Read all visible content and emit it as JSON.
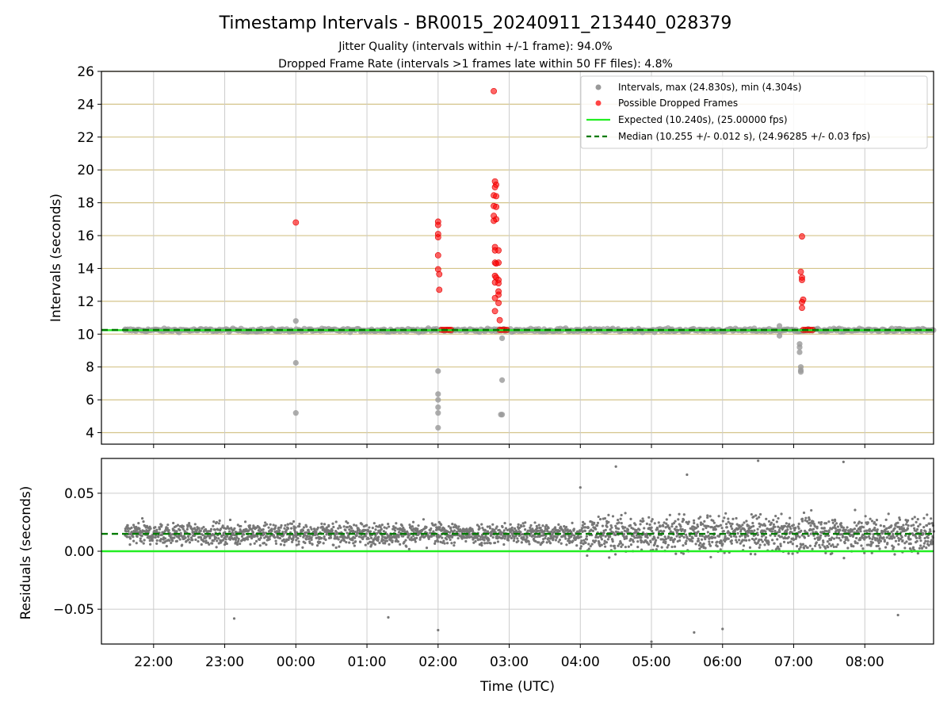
{
  "figure": {
    "title": "Timestamp Intervals - BR0015_20240911_213440_028379",
    "subtitle_1": "Jitter Quality (intervals within +/-1 frame): 94.0%",
    "subtitle_2": "Dropped Frame Rate (intervals >1 frames late within 50 FF files): 4.8%"
  },
  "chart_data": [
    {
      "type": "scatter",
      "panel": "intervals",
      "ylabel": "Intervals (seconds)",
      "ylim": [
        3.3,
        26
      ],
      "yticks": [
        4,
        6,
        8,
        10,
        12,
        14,
        16,
        18,
        20,
        22,
        24,
        26
      ],
      "xlim": [
        "21:16",
        "08:58"
      ],
      "xticks": [
        "22:00",
        "23:00",
        "00:00",
        "01:00",
        "02:00",
        "03:00",
        "04:00",
        "05:00",
        "06:00",
        "07:00",
        "08:00"
      ],
      "grid": true,
      "legend_position": "top-right",
      "series": [
        {
          "name": "Intervals, max (24.830s), min (4.304s)",
          "color": "#999999",
          "points": [
            [
              "21:36",
              10.24
            ],
            [
              "00:00",
              10.8
            ],
            [
              "00:00",
              8.25
            ],
            [
              "00:00",
              5.2
            ],
            [
              "02:00",
              7.75
            ],
            [
              "02:00",
              6.35
            ],
            [
              "02:00",
              6.0
            ],
            [
              "02:00",
              5.55
            ],
            [
              "02:00",
              5.2
            ],
            [
              "02:00",
              4.3
            ],
            [
              "02:54",
              9.75
            ],
            [
              "02:54",
              7.2
            ],
            [
              "02:54",
              5.1
            ],
            [
              "02:53",
              5.1
            ],
            [
              "06:48",
              10.5
            ],
            [
              "06:48",
              9.9
            ],
            [
              "07:05",
              9.4
            ],
            [
              "07:05",
              9.2
            ],
            [
              "07:05",
              8.9
            ],
            [
              "07:06",
              8.0
            ],
            [
              "07:06",
              7.8
            ],
            [
              "07:06",
              7.7
            ]
          ],
          "baseline": {
            "from": "21:36",
            "to": "08:58",
            "value": 10.24,
            "spread": 0.12
          }
        },
        {
          "name": "Possible Dropped Frames",
          "color": "#ff0000",
          "points": [
            [
              "00:00",
              16.8
            ],
            [
              "02:00",
              16.85
            ],
            [
              "02:00",
              16.65
            ],
            [
              "02:00",
              16.1
            ],
            [
              "02:00",
              15.9
            ],
            [
              "02:00",
              14.8
            ],
            [
              "02:00",
              13.95
            ],
            [
              "02:01",
              13.65
            ],
            [
              "02:01",
              12.7
            ],
            [
              "02:03",
              10.26
            ],
            [
              "02:05",
              10.26
            ],
            [
              "02:07",
              10.26
            ],
            [
              "02:09",
              10.26
            ],
            [
              "02:11",
              10.26
            ],
            [
              "02:47",
              24.8
            ],
            [
              "02:48",
              19.3
            ],
            [
              "02:49",
              19.1
            ],
            [
              "02:48",
              18.95
            ],
            [
              "02:47",
              18.45
            ],
            [
              "02:49",
              18.4
            ],
            [
              "02:47",
              17.8
            ],
            [
              "02:49",
              17.75
            ],
            [
              "02:47",
              17.2
            ],
            [
              "02:49",
              17.0
            ],
            [
              "02:47",
              16.9
            ],
            [
              "02:48",
              15.3
            ],
            [
              "02:48",
              15.1
            ],
            [
              "02:51",
              15.1
            ],
            [
              "02:48",
              14.35
            ],
            [
              "02:49",
              14.3
            ],
            [
              "02:51",
              14.35
            ],
            [
              "02:48",
              13.55
            ],
            [
              "02:49",
              13.45
            ],
            [
              "02:48",
              13.15
            ],
            [
              "02:51",
              13.3
            ],
            [
              "02:51",
              13.1
            ],
            [
              "02:51",
              12.6
            ],
            [
              "02:51",
              12.4
            ],
            [
              "02:48",
              12.2
            ],
            [
              "02:51",
              11.9
            ],
            [
              "02:48",
              11.4
            ],
            [
              "02:52",
              10.85
            ],
            [
              "02:52",
              10.26
            ],
            [
              "02:54",
              10.26
            ],
            [
              "02:56",
              10.26
            ],
            [
              "02:58",
              10.26
            ],
            [
              "07:07",
              15.95
            ],
            [
              "07:06",
              13.8
            ],
            [
              "07:07",
              13.45
            ],
            [
              "07:07",
              13.3
            ],
            [
              "07:08",
              12.1
            ],
            [
              "07:07",
              11.95
            ],
            [
              "07:07",
              11.6
            ],
            [
              "07:08",
              10.26
            ],
            [
              "07:10",
              10.26
            ],
            [
              "07:12",
              10.26
            ],
            [
              "07:14",
              10.26
            ],
            [
              "07:16",
              10.26
            ]
          ]
        },
        {
          "name": "Expected (10.240s), (25.00000 fps)",
          "type": "hline",
          "value": 10.24,
          "color": "#22ee22",
          "style": "solid"
        },
        {
          "name": "Median (10.255 +/- 0.012 s), (24.96285 +/- 0.03 fps)",
          "type": "hline",
          "value": 10.255,
          "color": "#007a00",
          "style": "dashed"
        }
      ]
    },
    {
      "type": "scatter",
      "panel": "residuals",
      "xlabel": "Time (UTC)",
      "ylabel": "Residuals (seconds)",
      "ylim": [
        -0.08,
        0.08
      ],
      "yticks": [
        0.05,
        0.0,
        -0.05
      ],
      "ytick_labels": [
        "0.05",
        "0.00",
        "−0.05"
      ],
      "xlim": [
        "21:16",
        "08:58"
      ],
      "xticks": [
        "22:00",
        "23:00",
        "00:00",
        "01:00",
        "02:00",
        "03:00",
        "04:00",
        "05:00",
        "06:00",
        "07:00",
        "08:00"
      ],
      "grid": true,
      "series": [
        {
          "name": "",
          "color": "#777777",
          "distribution": {
            "from": "21:36",
            "to": "08:58",
            "center": 0.015,
            "spread_before_04_00": 0.012,
            "spread_after_04_00": 0.02,
            "min": -0.071,
            "max": 0.078
          },
          "notable_points": [
            [
              "23:08",
              -0.058
            ],
            [
              "01:18",
              -0.057
            ],
            [
              "02:00",
              -0.068
            ],
            [
              "04:00",
              0.055
            ],
            [
              "04:30",
              0.073
            ],
            [
              "05:00",
              -0.078
            ],
            [
              "05:30",
              0.066
            ],
            [
              "06:00",
              -0.067
            ],
            [
              "06:30",
              0.078
            ],
            [
              "07:42",
              0.077
            ],
            [
              "08:28",
              -0.055
            ],
            [
              "05:36",
              -0.07
            ]
          ]
        },
        {
          "name": "",
          "type": "hline",
          "value": 0.0,
          "color": "#22ee22",
          "style": "solid"
        },
        {
          "name": "",
          "type": "hline",
          "value": 0.015,
          "color": "#007a00",
          "style": "dashed"
        }
      ]
    }
  ]
}
